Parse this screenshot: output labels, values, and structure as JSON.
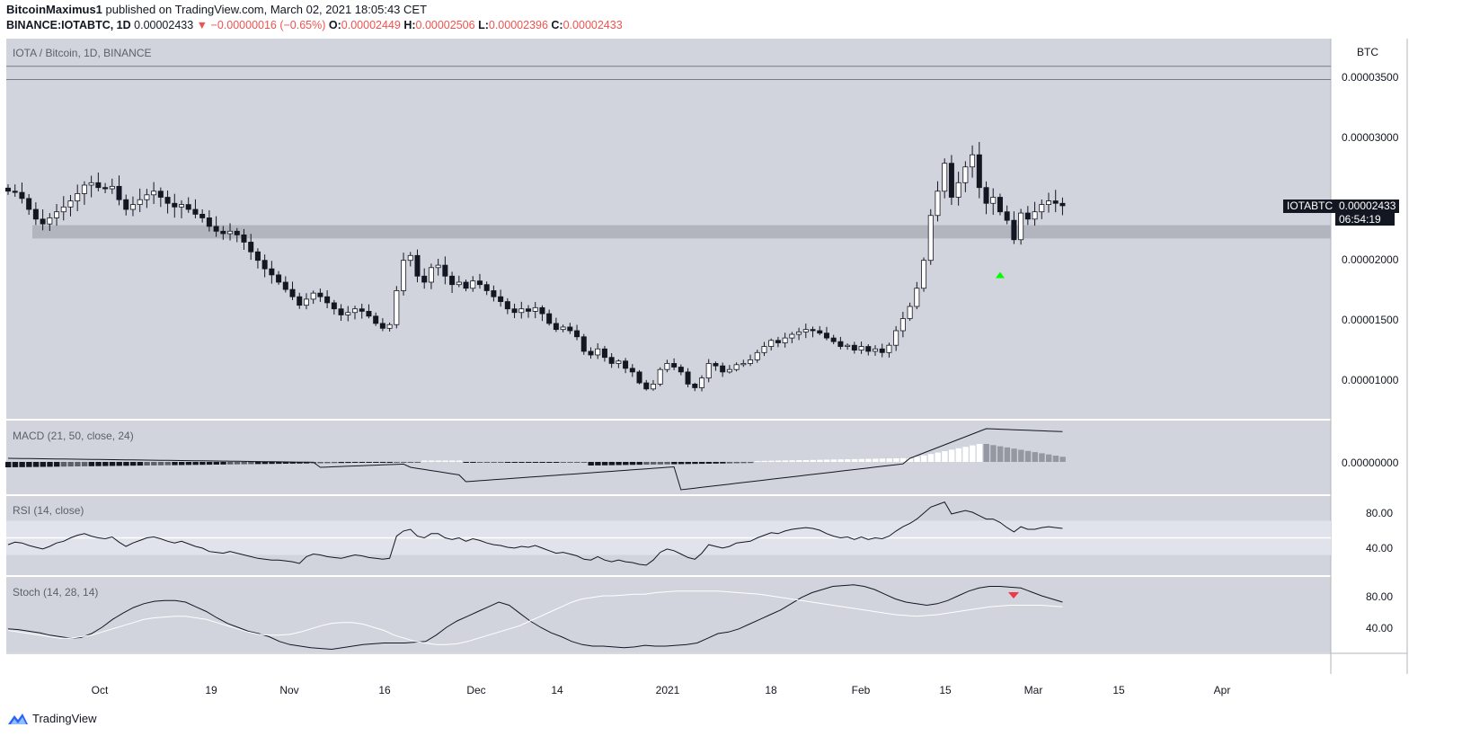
{
  "header": {
    "author": "BitcoinMaximus1",
    "published_text": " published on TradingView.com, March 02, 2021 18:05:43 CET",
    "symbol": "BINANCE:IOTABTC, 1D",
    "last": "0.00002433",
    "change": "−0.00000016 (−0.65%)",
    "o_label": "O:",
    "o_value": "0.00002449",
    "h_label": "H:",
    "h_value": "0.00002506",
    "l_label": "L:",
    "l_value": "0.00002396",
    "c_label": "C:",
    "c_value": "0.00002433"
  },
  "colors": {
    "pane_bg": "#d1d4dc",
    "support_band": "#b2b5be",
    "marker_green": "#00ff00",
    "marker_red": "#f23645",
    "tag_bg": "#131722"
  },
  "price_tag": {
    "symbol": "IOTABTC",
    "price": "0.00002433",
    "countdown": "06:54:19"
  },
  "footer": {
    "brand": "TradingView"
  },
  "chart_data": [
    {
      "type": "candlestick",
      "title": "IOTA / Bitcoin, 1D, BINANCE",
      "ylabel": "BTC",
      "ylim": [
        6.3e-06,
        3.65e-05
      ],
      "yticks": [
        "0.00003500",
        "0.00003000",
        "0.00002500",
        "0.00002000",
        "0.00001500",
        "0.00001000"
      ],
      "x_tick_labels": [
        "Oct",
        "19",
        "Nov",
        "16",
        "Dec",
        "14",
        "2021",
        "18",
        "Feb",
        "15",
        "Mar",
        "15",
        "Apr"
      ],
      "x_range": [
        "2020-09-16",
        "2021-04-26"
      ],
      "support_zone": [
        2.16e-05,
        2.27e-05
      ],
      "horizontal_lines": [
        3.58e-05,
        3.47e-05
      ],
      "closes": [
        2.55e-05,
        2.54e-05,
        2.49e-05,
        2.4e-05,
        2.32e-05,
        2.28e-05,
        2.33e-05,
        2.38e-05,
        2.42e-05,
        2.47e-05,
        2.53e-05,
        2.6e-05,
        2.62e-05,
        2.58e-05,
        2.57e-05,
        2.59e-05,
        2.48e-05,
        2.4e-05,
        2.44e-05,
        2.48e-05,
        2.52e-05,
        2.55e-05,
        2.5e-05,
        2.45e-05,
        2.42e-05,
        2.44e-05,
        2.4e-05,
        2.36e-05,
        2.33e-05,
        2.26e-05,
        2.22e-05,
        2.2e-05,
        2.22e-05,
        2.19e-05,
        2.13e-05,
        2.05e-05,
        1.98e-05,
        1.91e-05,
        1.86e-05,
        1.8e-05,
        1.74e-05,
        1.68e-05,
        1.61e-05,
        1.66e-05,
        1.71e-05,
        1.68e-05,
        1.63e-05,
        1.58e-05,
        1.53e-05,
        1.55e-05,
        1.58e-05,
        1.56e-05,
        1.52e-05,
        1.46e-05,
        1.42e-05,
        1.45e-05,
        1.73e-05,
        1.98e-05,
        2.02e-05,
        1.85e-05,
        1.8e-05,
        1.92e-05,
        1.94e-05,
        1.85e-05,
        1.78e-05,
        1.8e-05,
        1.75e-05,
        1.81e-05,
        1.78e-05,
        1.73e-05,
        1.68e-05,
        1.64e-05,
        1.58e-05,
        1.55e-05,
        1.58e-05,
        1.56e-05,
        1.59e-05,
        1.54e-05,
        1.46e-05,
        1.41e-05,
        1.43e-05,
        1.4e-05,
        1.35e-05,
        1.23e-05,
        1.2e-05,
        1.25e-05,
        1.18e-05,
        1.13e-05,
        1.15e-05,
        1.09e-05,
        1.06e-05,
        9.7e-06,
        9.2e-06,
        9.6e-06,
        1.08e-05,
        1.13e-05,
        1.1e-05,
        1.06e-05,
        9.6e-06,
        9.3e-06,
        1.01e-05,
        1.13e-05,
        1.11e-05,
        1.06e-05,
        1.08e-05,
        1.12e-05,
        1.13e-05,
        1.16e-05,
        1.22e-05,
        1.27e-05,
        1.32e-05,
        1.3e-05,
        1.34e-05,
        1.37e-05,
        1.39e-05,
        1.41e-05,
        1.4e-05,
        1.38e-05,
        1.34e-05,
        1.31e-05,
        1.27e-05,
        1.28e-05,
        1.24e-05,
        1.27e-05,
        1.23e-05,
        1.25e-05,
        1.22e-05,
        1.28e-05,
        1.4e-05,
        1.5e-05,
        1.6e-05,
        1.75e-05,
        1.98e-05,
        2.35e-05,
        2.55e-05,
        2.78e-05,
        2.5e-05,
        2.62e-05,
        2.75e-05,
        2.85e-05,
        2.58e-05,
        2.45e-05,
        2.5e-05,
        2.38e-05,
        2.31e-05,
        2.15e-05,
        2.37e-05,
        2.32e-05,
        2.38e-05,
        2.44e-05,
        2.47e-05,
        2.45e-05,
        2.43e-05
      ],
      "markers": [
        {
          "date": "2021-02-22",
          "type": "up-arrow",
          "value": 1.93e-05
        }
      ]
    },
    {
      "type": "line",
      "title": "MACD (21, 50, close, 24)",
      "yticks": [
        "0.00000000"
      ],
      "series": [],
      "histogram": "bars below and above zero, dark when falling, light when rising"
    },
    {
      "type": "line",
      "title": "RSI (14, close)",
      "ylim": [
        10,
        100
      ],
      "yticks": [
        "80.00",
        "40.00"
      ],
      "band": [
        30,
        70
      ],
      "midline": 50,
      "values": [
        42,
        45,
        44,
        41,
        39,
        37,
        40,
        44,
        46,
        50,
        53,
        55,
        52,
        50,
        49,
        51,
        45,
        40,
        44,
        47,
        50,
        51,
        49,
        46,
        44,
        46,
        43,
        40,
        38,
        34,
        33,
        32,
        34,
        32,
        30,
        28,
        26,
        25,
        24,
        24,
        23,
        22,
        20,
        28,
        31,
        30,
        28,
        27,
        26,
        28,
        30,
        29,
        27,
        26,
        25,
        26,
        52,
        58,
        60,
        52,
        50,
        55,
        55,
        50,
        48,
        50,
        46,
        49,
        47,
        44,
        42,
        41,
        39,
        38,
        40,
        39,
        41,
        38,
        35,
        32,
        33,
        31,
        29,
        25,
        24,
        28,
        24,
        22,
        24,
        22,
        21,
        19,
        18,
        24,
        33,
        37,
        35,
        31,
        27,
        25,
        32,
        42,
        40,
        38,
        40,
        44,
        45,
        46,
        50,
        53,
        56,
        55,
        58,
        60,
        61,
        62,
        61,
        59,
        55,
        52,
        50,
        51,
        48,
        51,
        48,
        50,
        49,
        52,
        58,
        63,
        67,
        72,
        79,
        86,
        89,
        92,
        78,
        80,
        82,
        80,
        76,
        72,
        72,
        68,
        62,
        57,
        63,
        60,
        60,
        62,
        63,
        62,
        61
      ]
    },
    {
      "type": "line",
      "title": "Stoch (14, 28, 14)",
      "ylim": [
        0,
        100
      ],
      "yticks": [
        "80.00",
        "40.00"
      ],
      "series": [
        {
          "values": [
            38,
            37,
            35,
            33,
            30,
            28,
            26,
            27,
            32,
            40,
            50,
            58,
            65,
            70,
            73,
            74,
            74,
            72,
            66,
            60,
            52,
            45,
            40,
            35,
            32,
            28,
            22,
            18,
            16,
            14,
            13,
            12,
            14,
            16,
            18,
            19,
            20,
            20,
            20,
            21,
            22,
            30,
            40,
            48,
            54,
            60,
            66,
            72,
            68,
            58,
            48,
            40,
            33,
            28,
            22,
            18,
            16,
            16,
            15,
            14,
            15,
            17,
            16,
            16,
            17,
            18,
            20,
            26,
            32,
            34,
            38,
            44,
            50,
            56,
            62,
            70,
            78,
            84,
            88,
            92,
            93,
            94,
            92,
            88,
            82,
            76,
            72,
            70,
            68,
            70,
            74,
            80,
            86,
            90,
            92,
            92,
            91,
            90,
            85,
            80,
            76,
            72
          ]
        },
        {
          "values": [
            36,
            34,
            32,
            30,
            28,
            26,
            26,
            28,
            30,
            34,
            38,
            42,
            46,
            50,
            52,
            53,
            54,
            54,
            52,
            50,
            46,
            42,
            38,
            34,
            31,
            30,
            30,
            31,
            34,
            38,
            42,
            45,
            46,
            46,
            44,
            40,
            36,
            30,
            26,
            22,
            20,
            18,
            18,
            19,
            22,
            26,
            30,
            34,
            38,
            42,
            48,
            54,
            60,
            66,
            72,
            76,
            78,
            80,
            80,
            81,
            82,
            82,
            84,
            85,
            86,
            86,
            86,
            86,
            86,
            85,
            84,
            83,
            82,
            80,
            78,
            76,
            74,
            72,
            70,
            68,
            66,
            64,
            62,
            60,
            58,
            56,
            55,
            54,
            55,
            56,
            58,
            60,
            62,
            64,
            66,
            67,
            68,
            68,
            68,
            68,
            67,
            66
          ]
        }
      ],
      "markers": [
        {
          "type": "down-arrow",
          "value": 88
        }
      ]
    }
  ],
  "time_axis": {
    "labels": [
      "Oct",
      "19",
      "Nov",
      "16",
      "Dec",
      "14",
      "2021",
      "18",
      "Feb",
      "15",
      "Mar",
      "15",
      "Apr"
    ]
  }
}
